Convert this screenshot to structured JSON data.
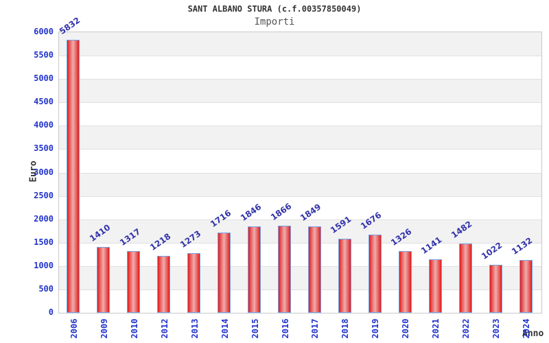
{
  "header": {
    "title": "SANT ALBANO STURA (c.f.00357850049)",
    "subtitle": "Importi"
  },
  "chart_data": {
    "type": "bar",
    "title": "SANT ALBANO STURA (c.f.00357850049)",
    "subtitle": "Importi",
    "xlabel": "Anno",
    "ylabel": "Euro",
    "categories": [
      "2006",
      "2009",
      "2010",
      "2012",
      "2013",
      "2014",
      "2015",
      "2016",
      "2017",
      "2018",
      "2019",
      "2020",
      "2021",
      "2022",
      "2023",
      "2024"
    ],
    "values": [
      5832,
      1410,
      1317,
      1218,
      1273,
      1716,
      1846,
      1866,
      1849,
      1591,
      1676,
      1326,
      1141,
      1482,
      1022,
      1132
    ],
    "ylim": [
      0,
      6000
    ],
    "ytick_step": 500,
    "grid": true,
    "legend": false,
    "colors": {
      "bar_edge": "#e31a1a",
      "bar_center": "#eeadad",
      "bar_border": "#74a3e8",
      "axis_tick_label": "#2233cc",
      "value_label": "#3333aa",
      "band_fill": "#f2f2f2",
      "gridline": "#dfdfdf",
      "plot_border": "#c8c8c8",
      "title_color": "#333333",
      "subtitle_color": "#555555",
      "axis_title_color": "#333333"
    }
  }
}
